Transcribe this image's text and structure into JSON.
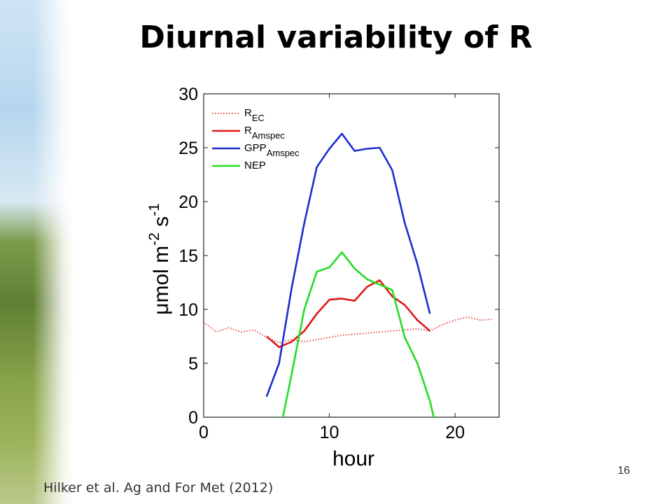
{
  "slide": {
    "title": "Diurnal variability of R",
    "page_number": "16",
    "citation": "Hilker et al. Ag and For Met (2012)"
  },
  "chart_data": {
    "type": "line",
    "xlabel": "hour",
    "ylabel": {
      "base": "μmol m",
      "sup1": "-2",
      "mid": " s",
      "sup2": "-1"
    },
    "xlim": [
      0,
      23.5
    ],
    "ylim": [
      0,
      30
    ],
    "xticks": [
      0,
      10,
      20
    ],
    "yticks": [
      0,
      5,
      10,
      15,
      20,
      25,
      30
    ],
    "grid": false,
    "legend_position": "top-left",
    "series": [
      {
        "name": "R",
        "sub": "EC",
        "color": "#e05050",
        "style": "dotted",
        "x": [
          0,
          1,
          2,
          3,
          4,
          5,
          6,
          7,
          8,
          9,
          10,
          11,
          12,
          13,
          14,
          15,
          16,
          17,
          18,
          19,
          20,
          21,
          22,
          23
        ],
        "y": [
          8.8,
          7.9,
          8.3,
          7.9,
          8.1,
          7.4,
          6.9,
          7.2,
          7.0,
          7.2,
          7.4,
          7.6,
          7.7,
          7.8,
          7.9,
          8.0,
          8.1,
          8.2,
          8.0,
          8.6,
          9.0,
          9.3,
          9.0,
          9.1
        ]
      },
      {
        "name": "R",
        "sub": "Amspec",
        "color": "#e01818",
        "style": "solid",
        "x": [
          5,
          6,
          7,
          8,
          9,
          10,
          11,
          12,
          13,
          14,
          15,
          16,
          17,
          18
        ],
        "y": [
          7.5,
          6.5,
          7.0,
          8.0,
          9.6,
          10.9,
          11.0,
          10.8,
          12.1,
          12.7,
          11.2,
          10.4,
          9.0,
          8.0
        ]
      },
      {
        "name": "GPP",
        "sub": "Amspec",
        "color": "#1a2ecc",
        "style": "solid",
        "x": [
          5,
          6,
          7,
          8,
          9,
          10,
          11,
          12,
          13,
          14,
          15,
          16,
          17,
          18
        ],
        "y": [
          1.9,
          5.0,
          12.0,
          18.0,
          23.2,
          24.9,
          26.3,
          24.7,
          24.9,
          25.0,
          22.9,
          18.0,
          14.2,
          9.6
        ]
      },
      {
        "name": "NEP",
        "sub": "",
        "color": "#22dd22",
        "style": "solid",
        "x": [
          6.3,
          7,
          8,
          9,
          10,
          11,
          12,
          13,
          14,
          15,
          16,
          17,
          18,
          18.3
        ],
        "y": [
          0,
          4.0,
          10.0,
          13.5,
          13.9,
          15.3,
          13.8,
          12.8,
          12.3,
          11.8,
          7.4,
          5.0,
          1.5,
          0
        ]
      }
    ]
  }
}
